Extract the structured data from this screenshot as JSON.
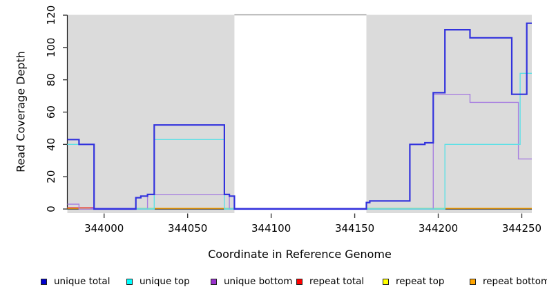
{
  "chart_data": {
    "type": "line",
    "subtype": "step-coverage",
    "title": "",
    "xlabel": "Coordinate in Reference Genome",
    "ylabel": "Read Coverage Depth",
    "xlim": [
      343978,
      344256
    ],
    "ylim": [
      0,
      120
    ],
    "xticks": [
      344000,
      344050,
      344100,
      344150,
      344200,
      344250
    ],
    "yticks": [
      0,
      20,
      40,
      60,
      80,
      100,
      120
    ],
    "grid": "off",
    "legend_position": "bottom",
    "panel_bg": "#dbdbdb",
    "shaded_regions": [
      [
        343978,
        344078
      ],
      [
        344157,
        344256
      ]
    ],
    "white_region": {
      "from": 344078,
      "to": 344157,
      "top_border_color": "#9c9c9c"
    },
    "baseline_segments": [
      {
        "from": 343978,
        "to": 343992,
        "color": "#ffa500"
      },
      {
        "from": 343992,
        "to": 344019,
        "color": "#7b68ee"
      },
      {
        "from": 344019,
        "to": 344030,
        "color": "#90de9a"
      },
      {
        "from": 344030,
        "to": 344072,
        "color": "#ffa500"
      },
      {
        "from": 344072,
        "to": 344078,
        "color": "#90de9a"
      },
      {
        "from": 344078,
        "to": 344157,
        "color": "#8677e0"
      },
      {
        "from": 344157,
        "to": 344204,
        "color": "#90de9a"
      },
      {
        "from": 344204,
        "to": 344256,
        "color": "#ffa500"
      }
    ],
    "series": [
      {
        "name": "repeat total",
        "color": "#e0667f",
        "width": 1.3,
        "end": 343994,
        "steps": [
          [
            343978,
            1
          ]
        ]
      },
      {
        "name": "unique bottom",
        "color": "#a87fe0",
        "width": 1.4,
        "end": 344256,
        "steps": [
          [
            343978,
            3
          ],
          [
            343985,
            0
          ],
          [
            344026,
            9
          ],
          [
            344075,
            0
          ],
          [
            344197,
            71
          ],
          [
            344219,
            66
          ],
          [
            344248,
            31
          ]
        ]
      },
      {
        "name": "unique top",
        "color": "#5ee0e6",
        "width": 1.4,
        "end": 344256,
        "steps": [
          [
            343978,
            40
          ],
          [
            343994,
            0
          ],
          [
            344030,
            43
          ],
          [
            344072,
            0
          ],
          [
            344204,
            40
          ],
          [
            344249,
            84
          ]
        ]
      },
      {
        "name": "unique total",
        "color": "#3232dd",
        "width": 2.2,
        "end": 344256,
        "steps": [
          [
            343978,
            43
          ],
          [
            343985,
            40
          ],
          [
            343994,
            0
          ],
          [
            344019,
            7
          ],
          [
            344022,
            8
          ],
          [
            344026,
            9
          ],
          [
            344030,
            52
          ],
          [
            344072,
            9
          ],
          [
            344075,
            8
          ],
          [
            344078,
            0
          ],
          [
            344157,
            4
          ],
          [
            344159,
            5
          ],
          [
            344183,
            40
          ],
          [
            344192,
            41
          ],
          [
            344197,
            72
          ],
          [
            344204,
            111
          ],
          [
            344219,
            106
          ],
          [
            344244,
            71
          ],
          [
            344253,
            115
          ]
        ]
      }
    ],
    "legend": [
      {
        "label": "unique total",
        "color": "#0000cd"
      },
      {
        "label": "unique top",
        "color": "#00ffff"
      },
      {
        "label": "unique bottom",
        "color": "#9932cc"
      },
      {
        "label": "repeat total",
        "color": "#ff0000"
      },
      {
        "label": "repeat top",
        "color": "#ffff00"
      },
      {
        "label": "repeat bottom",
        "color": "#ffa500"
      }
    ],
    "axis_color": "#1a1a1a",
    "tick_color": "#3a3a3a",
    "tick_label_color": "#000000"
  }
}
